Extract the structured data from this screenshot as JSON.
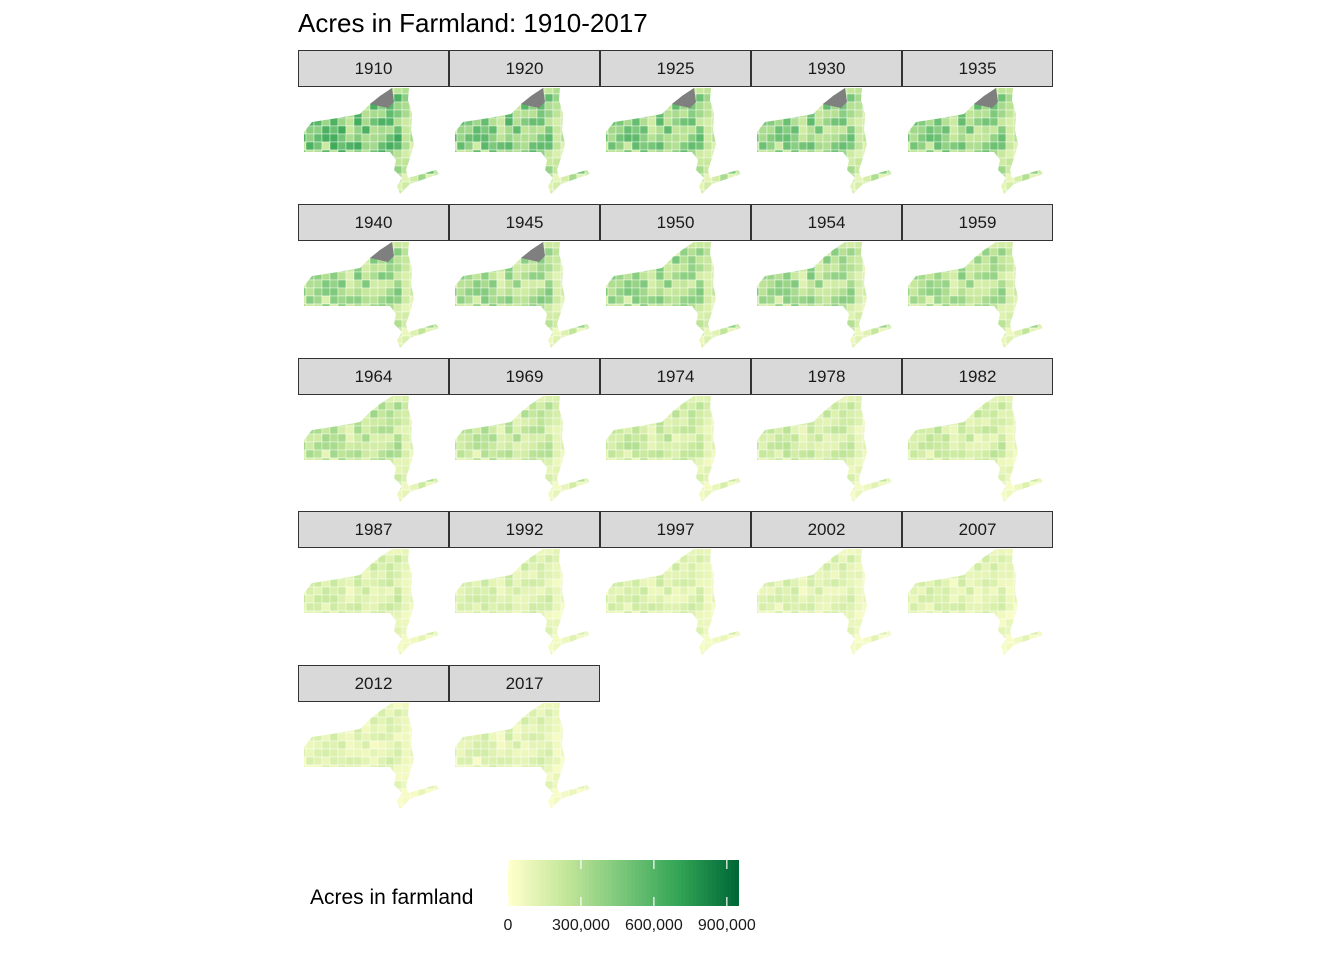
{
  "title": "Acres in Farmland: 1910-2017",
  "chart_data": {
    "type": "choropleth-facet",
    "title": "Acres in Farmland: 1910-2017",
    "facets": [
      "1910",
      "1920",
      "1925",
      "1930",
      "1935",
      "1940",
      "1945",
      "1950",
      "1954",
      "1959",
      "1964",
      "1969",
      "1974",
      "1978",
      "1982",
      "1987",
      "1992",
      "1997",
      "2002",
      "2007",
      "2012",
      "2017"
    ],
    "facet_intensity": [
      0.52,
      0.46,
      0.44,
      0.42,
      0.42,
      0.36,
      0.34,
      0.36,
      0.34,
      0.32,
      0.27,
      0.24,
      0.21,
      0.2,
      0.19,
      0.17,
      0.16,
      0.15,
      0.14,
      0.14,
      0.13,
      0.13
    ],
    "missing_region_facets": [
      "1910",
      "1920",
      "1925",
      "1930",
      "1935",
      "1940",
      "1945"
    ],
    "legend": {
      "title": "Acres in farmland",
      "range": [
        0,
        950000
      ],
      "ticks": [
        0,
        300000,
        600000,
        900000
      ],
      "tick_labels": [
        "0",
        "300,000",
        "600,000",
        "900,000"
      ],
      "colors": [
        "#ffffcc",
        "#c2e699",
        "#78c679",
        "#31a354",
        "#006837"
      ],
      "missing_color": "#7f7f7f",
      "position": "bottom"
    }
  }
}
